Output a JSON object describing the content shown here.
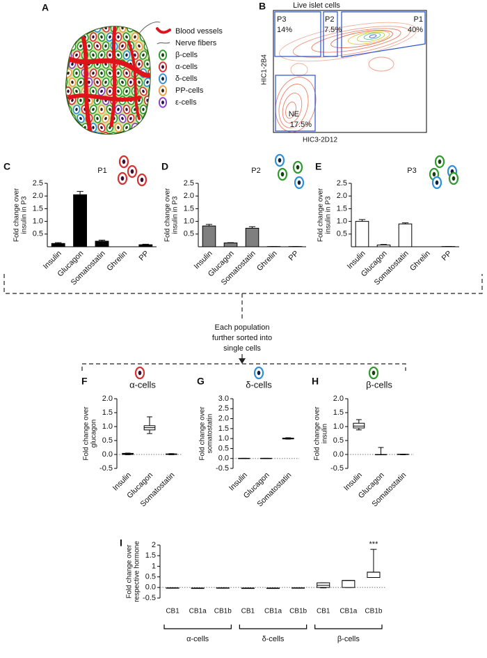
{
  "panel_a": {
    "label": "A",
    "legend": [
      "Blood vessels",
      "Nerve fibers",
      "β-cells",
      "α-cells",
      "δ-cells",
      "PP-cells",
      "ε-cells"
    ]
  },
  "panel_b": {
    "label": "B",
    "title": "Live islet cells",
    "y_label": "HIC1-2B4",
    "x_label": "HIC3-2D12",
    "gates": [
      {
        "name": "P3",
        "percent": "14%"
      },
      {
        "name": "P2",
        "percent": "7.5%"
      },
      {
        "name": "P1",
        "percent": "40%"
      },
      {
        "name": "NE",
        "percent": "17.5%"
      }
    ]
  },
  "flow_text": [
    "Each population",
    "further sorted into",
    "single cells"
  ],
  "chart_data": [
    {
      "type": "bar",
      "label": "C",
      "title": "P1",
      "y_label": [
        "Fold change over",
        "insulin in P3"
      ],
      "categories": [
        "Insulin",
        "Glucagon",
        "Somatostatin",
        "Ghrelin",
        "PP"
      ],
      "values": [
        0.13,
        2.05,
        0.22,
        0,
        0.08
      ],
      "errors": [
        0.03,
        0.13,
        0.04,
        0,
        0.02
      ],
      "color": "#000000",
      "ylim": [
        0,
        2.5
      ],
      "yticks": [
        0.5,
        {
          "value": 1,
          "label": "1.0"
        },
        1.5,
        {
          "value": 2,
          "label": "2.0"
        },
        2.5
      ]
    },
    {
      "type": "bar",
      "label": "D",
      "title": "P2",
      "y_label": [
        "Fold change over",
        "insulin in P3"
      ],
      "categories": [
        "Insulin",
        "Glucagon",
        "Somatostatin",
        "Ghrelin",
        "PP"
      ],
      "values": [
        0.82,
        0.15,
        0.73,
        0.01,
        0.01
      ],
      "errors": [
        0.06,
        0.01,
        0.06,
        0,
        0
      ],
      "color": "#7f7f7f",
      "ylim": [
        0,
        2.5
      ],
      "yticks": [
        0.5,
        {
          "value": 1,
          "label": "1.0"
        },
        1.5,
        {
          "value": 2,
          "label": "2.0"
        },
        2.5
      ]
    },
    {
      "type": "bar",
      "label": "E",
      "title": "P3",
      "y_label": [
        "Fold change over",
        "insulin in P3"
      ],
      "categories": [
        "Insulin",
        "Glucagon",
        "Somatostatin",
        "Ghrelin",
        "PP"
      ],
      "values": [
        1.0,
        0.07,
        0.9,
        0,
        0.01
      ],
      "errors": [
        0.07,
        0.02,
        0.04,
        0,
        0
      ],
      "color": "#ffffff",
      "ylim": [
        0,
        2.5
      ],
      "yticks": [
        0.5,
        {
          "value": 1,
          "label": "1.0"
        },
        1.5,
        {
          "value": 2,
          "label": "2.0"
        },
        2.5
      ]
    },
    {
      "type": "box",
      "label": "F",
      "title": "α-cells",
      "y_label": [
        "Fold change over",
        "glucagon"
      ],
      "categories": [
        "Insulin",
        "Glucagon",
        "Somatostatin"
      ],
      "boxes": [
        {
          "min": -0.01,
          "q1": 0.0,
          "median": 0.02,
          "q3": 0.04,
          "max": 0.05
        },
        {
          "min": 0.75,
          "q1": 0.88,
          "median": 0.96,
          "q3": 1.03,
          "max": 1.35
        },
        {
          "min": -0.01,
          "q1": 0.0,
          "median": 0.01,
          "q3": 0.02,
          "max": 0.03
        }
      ],
      "ylim": [
        -0.5,
        2
      ],
      "yticks": [
        -0.5,
        {
          "value": 0,
          "label": "0.0"
        },
        0.5,
        {
          "value": 1,
          "label": "1.0"
        },
        1.5,
        {
          "value": 2,
          "label": "2.0"
        }
      ],
      "hline": 0
    },
    {
      "type": "box",
      "label": "G",
      "title": "δ-cells",
      "y_label": [
        "Fold change over",
        "somatostatin"
      ],
      "categories": [
        "Insulin",
        "Glucagon",
        "Somatostatin"
      ],
      "boxes": [
        {
          "min": -0.01,
          "q1": 0.0,
          "median": 0.0,
          "q3": 0.01,
          "max": 0.01
        },
        {
          "min": -0.01,
          "q1": 0.0,
          "median": 0.0,
          "q3": 0.01,
          "max": 0.01
        },
        {
          "min": 0.97,
          "q1": 0.98,
          "median": 1.0,
          "q3": 1.02,
          "max": 1.04
        }
      ],
      "ylim": [
        -0.5,
        3
      ],
      "yticks": [
        -0.5,
        {
          "value": 0,
          "label": "0.0"
        },
        0.5,
        {
          "value": 1,
          "label": "1.0"
        },
        1.5,
        {
          "value": 2,
          "label": "2.0"
        },
        2.5,
        {
          "value": 3,
          "label": "3.0"
        }
      ],
      "hline": 0
    },
    {
      "type": "box",
      "label": "H",
      "title": "β-cells",
      "y_label": [
        "Fold change over",
        "insulin"
      ],
      "categories": [
        "Insulin",
        "Glucagon",
        "Somatostatin"
      ],
      "boxes": [
        {
          "min": 0.88,
          "q1": 0.95,
          "median": 1.02,
          "q3": 1.12,
          "max": 1.25
        },
        {
          "min": 0.0,
          "q1": 0.0,
          "median": 0.0,
          "q3": 0.0,
          "max": 0.25
        },
        {
          "min": -0.01,
          "q1": 0.0,
          "median": 0.0,
          "q3": 0.01,
          "max": 0.01
        }
      ],
      "ylim": [
        -0.5,
        2
      ],
      "yticks": [
        -0.5,
        {
          "value": 0,
          "label": "0.0"
        },
        0.5,
        {
          "value": 1,
          "label": "1.0"
        },
        1.5,
        {
          "value": 2,
          "label": "2.0"
        }
      ],
      "hline": 0
    },
    {
      "type": "box",
      "label": "I",
      "y_label": [
        "Fold change over",
        "respective hormone"
      ],
      "categories": [
        "CB1",
        "CB1a",
        "CB1b",
        "CB1",
        "CB1a",
        "CB1b",
        "CB1",
        "CB1a",
        "CB1b"
      ],
      "groups": [
        "α-cells",
        "δ-cells",
        "β-cells"
      ],
      "boxes": [
        {
          "min": -0.03,
          "q1": -0.03,
          "median": -0.02,
          "q3": -0.02,
          "max": -0.02
        },
        {
          "min": -0.03,
          "q1": -0.03,
          "median": -0.03,
          "q3": -0.03,
          "max": -0.03
        },
        {
          "min": -0.03,
          "q1": -0.03,
          "median": -0.02,
          "q3": -0.02,
          "max": -0.02
        },
        {
          "min": -0.03,
          "q1": -0.03,
          "median": -0.03,
          "q3": -0.03,
          "max": -0.03
        },
        {
          "min": -0.03,
          "q1": -0.03,
          "median": -0.03,
          "q3": -0.03,
          "max": -0.03
        },
        {
          "min": -0.03,
          "q1": -0.03,
          "median": -0.02,
          "q3": -0.02,
          "max": -0.02
        },
        {
          "min": -0.02,
          "q1": 0.0,
          "median": 0.1,
          "q3": 0.22,
          "max": 0.22
        },
        {
          "min": 0.0,
          "q1": 0.0,
          "median": 0.33,
          "q3": 0.33,
          "max": 0.33
        },
        {
          "min": 0.47,
          "q1": 0.47,
          "median": 0.72,
          "q3": 0.72,
          "max": 1.8
        }
      ],
      "annotation": "***",
      "ylim": [
        -0.5,
        2
      ],
      "yticks": [
        -0.5,
        {
          "value": 0,
          "label": "0.0"
        },
        0.5,
        1,
        1.5,
        2
      ],
      "hline": 0
    }
  ]
}
